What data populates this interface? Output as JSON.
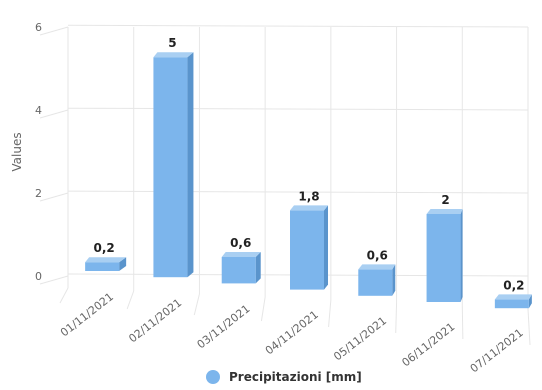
{
  "chart_data": {
    "type": "bar",
    "categories": [
      "01/11/2021",
      "02/11/2021",
      "03/11/2021",
      "04/11/2021",
      "05/11/2021",
      "06/11/2021",
      "07/11/2021"
    ],
    "series": [
      {
        "name": "Precipitazioni [mm]",
        "values": [
          0.2,
          5,
          0.6,
          1.8,
          0.6,
          2,
          0.2
        ],
        "color": "#7cb5ec"
      }
    ],
    "data_labels": [
      "0,2",
      "5",
      "0,6",
      "1,8",
      "0,6",
      "2",
      "0,2"
    ],
    "ylabel": "Values",
    "ylim": [
      0,
      6
    ],
    "yticks": [
      0,
      2,
      4,
      6
    ],
    "grid": true,
    "perspective": "3d",
    "legend": {
      "position": "bottom-center",
      "label": "Precipitazioni [mm]"
    }
  }
}
